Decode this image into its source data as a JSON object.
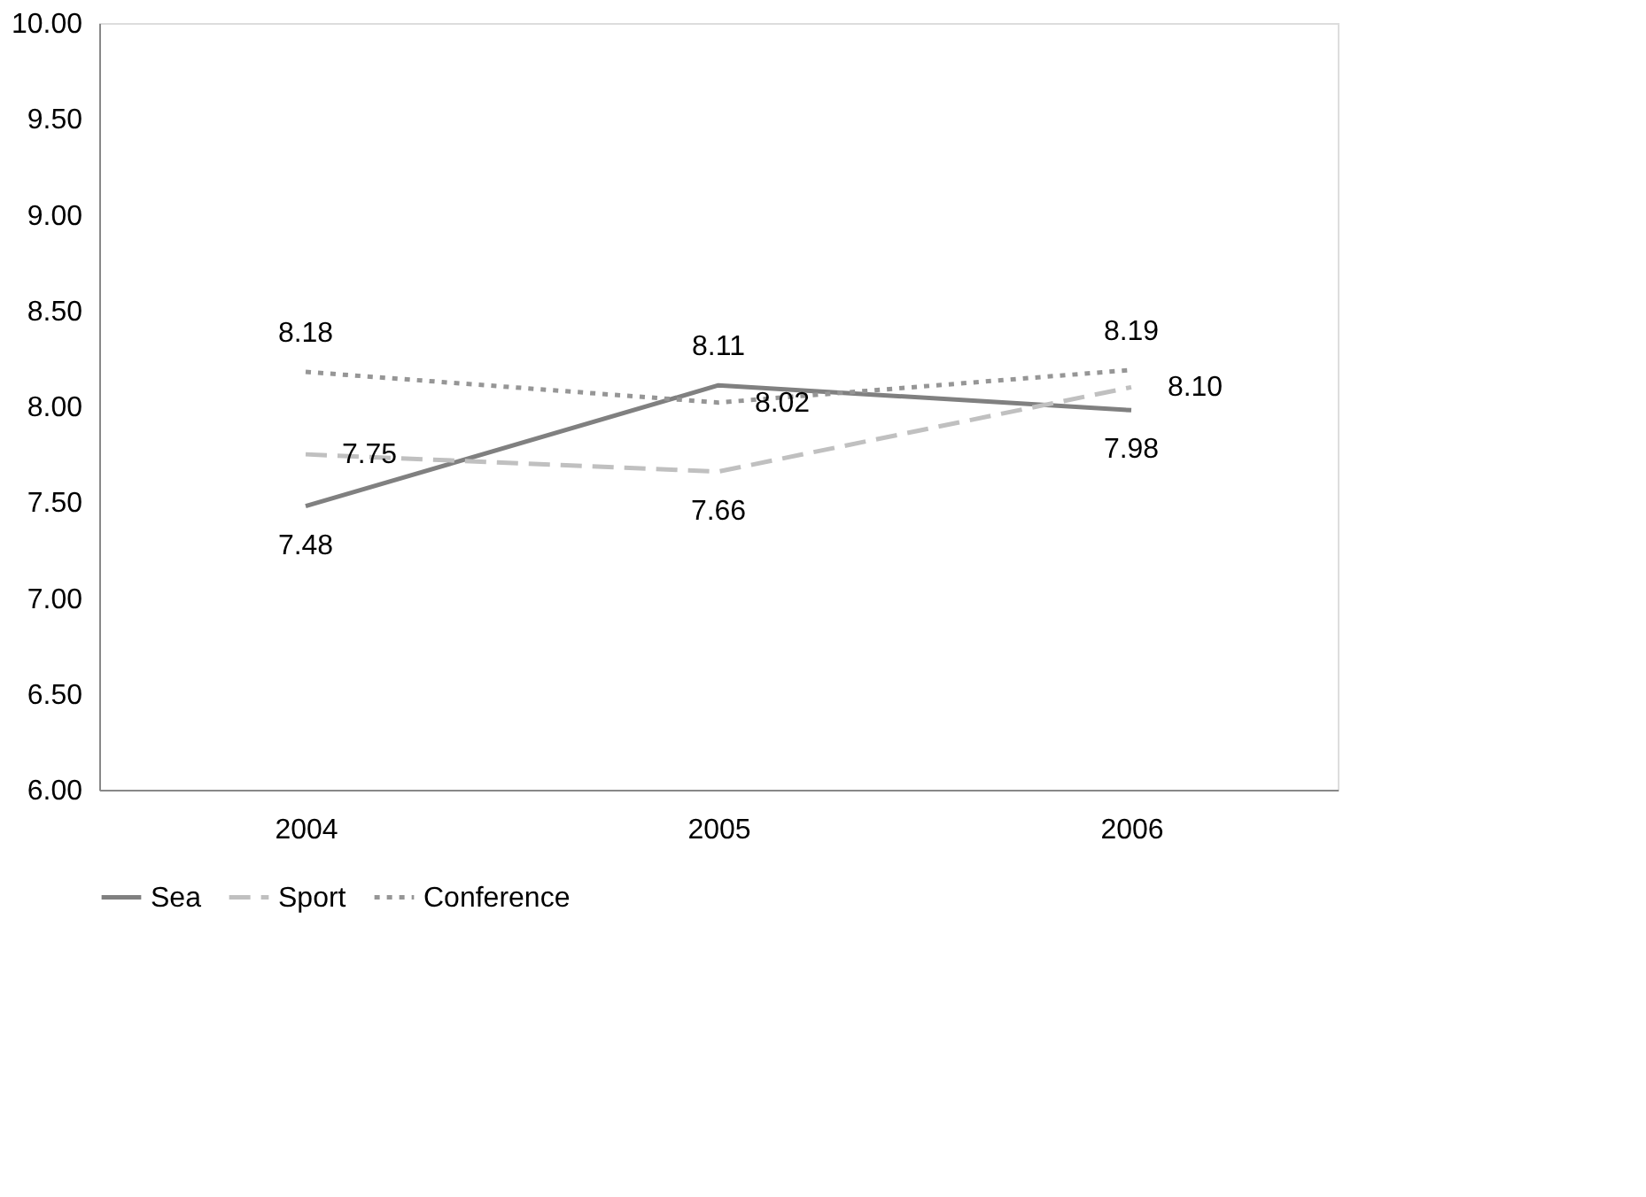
{
  "chart_data": {
    "type": "line",
    "categories": [
      "2004",
      "2005",
      "2006"
    ],
    "series": [
      {
        "name": "Sea",
        "color": "#808080",
        "values": [
          7.48,
          8.11,
          7.98
        ],
        "value_labels": [
          "7.48",
          "8.11",
          "7.98"
        ],
        "line_style": "solid"
      },
      {
        "name": "Sport",
        "color": "#c0c0c0",
        "values": [
          7.75,
          7.66,
          8.1
        ],
        "value_labels": [
          "7.75",
          "7.66",
          "8.10"
        ],
        "line_style": "dashed"
      },
      {
        "name": "Conference",
        "color": "#969696",
        "values": [
          8.18,
          8.02,
          8.19
        ],
        "value_labels": [
          "8.18",
          "8.02",
          "8.19"
        ],
        "line_style": "dotted"
      }
    ],
    "ylim": [
      6,
      10
    ],
    "yticks": [
      {
        "value": 6,
        "label": "6.00"
      },
      {
        "value": 6.5,
        "label": "6.50"
      },
      {
        "value": 7,
        "label": "7.00"
      },
      {
        "value": 7.5,
        "label": "7.50"
      },
      {
        "value": 8,
        "label": "8.00"
      },
      {
        "value": 8.5,
        "label": "8.50"
      },
      {
        "value": 9,
        "label": "9.00"
      },
      {
        "value": 9.5,
        "label": "9.50"
      },
      {
        "value": 10,
        "label": "10.00"
      }
    ],
    "grid": false,
    "legend": "bottom",
    "marker": "none"
  }
}
